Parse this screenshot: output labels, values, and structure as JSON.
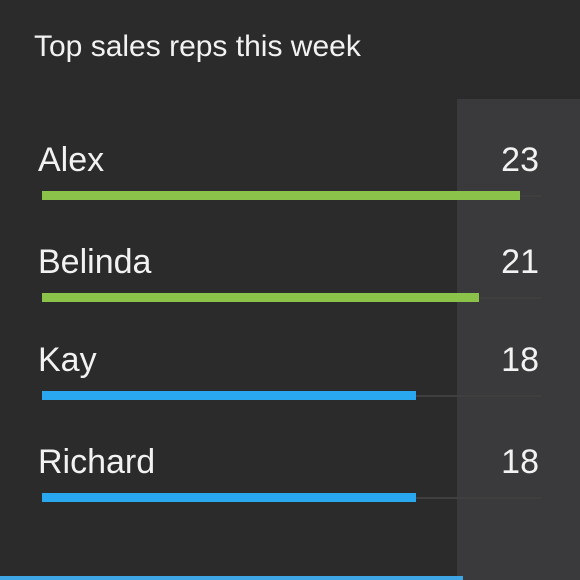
{
  "title": "Top sales reps this week",
  "colors": {
    "background": "#2b2b2b",
    "panel": "#3a3a3c",
    "green": "#8bc34a",
    "blue": "#29a8f0",
    "track": "#3f3f3f"
  },
  "chart_data": {
    "type": "bar",
    "orientation": "horizontal",
    "title": "Top sales reps this week",
    "categories": [
      "Alex",
      "Belinda",
      "Kay",
      "Richard"
    ],
    "values": [
      23,
      21,
      18,
      18
    ],
    "bar_colors": [
      "#8bc34a",
      "#8bc34a",
      "#29a8f0",
      "#29a8f0"
    ],
    "xlim": [
      0,
      24
    ],
    "grid": false,
    "legend": "none"
  }
}
